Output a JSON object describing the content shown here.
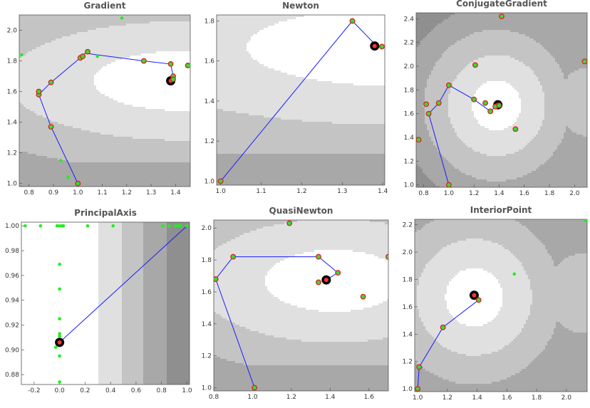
{
  "chart_data": [
    {
      "type": "contour",
      "title": "Gradient",
      "xlim": [
        0.76,
        1.46
      ],
      "ylim": [
        0.98,
        2.1
      ],
      "xticks": [
        "0.8",
        "0.9",
        "1.0",
        "1.1",
        "1.2",
        "1.3",
        "1.4"
      ],
      "yticks": [
        "1.0",
        "1.2",
        "1.4",
        "1.6",
        "1.8",
        "2.0"
      ],
      "minimum": [
        1.38,
        1.67
      ],
      "path": [
        [
          1.0,
          1.0
        ],
        [
          0.89,
          1.37
        ],
        [
          0.84,
          1.58
        ],
        [
          0.89,
          1.66
        ],
        [
          1.01,
          1.82
        ],
        [
          1.03,
          1.85
        ],
        [
          1.27,
          1.8
        ],
        [
          1.38,
          1.78
        ],
        [
          1.39,
          1.7
        ],
        [
          1.38,
          1.67
        ]
      ],
      "red_points": [
        [
          1.0,
          1.0
        ],
        [
          0.89,
          1.37
        ],
        [
          0.84,
          1.58
        ],
        [
          0.84,
          1.6
        ],
        [
          0.89,
          1.66
        ],
        [
          1.01,
          1.82
        ],
        [
          1.02,
          1.83
        ],
        [
          1.04,
          1.86
        ],
        [
          1.27,
          1.8
        ],
        [
          1.38,
          1.78
        ],
        [
          1.39,
          1.7
        ],
        [
          1.39,
          1.68
        ],
        [
          1.45,
          1.77
        ]
      ],
      "green_points": [
        [
          0.77,
          1.84
        ],
        [
          0.93,
          1.15
        ],
        [
          0.96,
          1.04
        ],
        [
          1.08,
          1.83
        ],
        [
          1.18,
          2.08
        ],
        [
          1.46,
          1.77
        ]
      ]
    },
    {
      "type": "contour",
      "title": "Newton",
      "xlim": [
        0.99,
        1.405
      ],
      "ylim": [
        0.98,
        1.83
      ],
      "xticks": [
        "1.0",
        "1.1",
        "1.2",
        "1.3",
        "1.4"
      ],
      "yticks": [
        "1.0",
        "1.2",
        "1.4",
        "1.6",
        "1.8"
      ],
      "minimum": [
        1.38,
        1.675
      ],
      "path": [
        [
          1.0,
          1.0
        ],
        [
          1.325,
          1.8
        ],
        [
          1.385,
          1.675
        ],
        [
          1.398,
          1.672
        ]
      ],
      "red_points": [
        [
          1.0,
          1.0
        ],
        [
          1.325,
          1.8
        ],
        [
          1.398,
          1.672
        ]
      ],
      "green_points": []
    },
    {
      "type": "contour",
      "title": "ConjugateGradient",
      "xlim": [
        0.74,
        2.1
      ],
      "ylim": [
        0.98,
        2.45
      ],
      "xticks": [
        "0.8",
        "1.0",
        "1.2",
        "1.4",
        "1.6",
        "1.8",
        "2.0"
      ],
      "yticks": [
        "1.0",
        "1.2",
        "1.4",
        "1.6",
        "1.8",
        "2.0",
        "2.2",
        "2.4"
      ],
      "minimum": [
        1.39,
        1.675
      ],
      "path": [
        [
          1.0,
          1.0
        ],
        [
          0.84,
          1.6
        ],
        [
          0.92,
          1.69
        ],
        [
          1.0,
          1.84
        ],
        [
          1.2,
          1.72
        ],
        [
          1.33,
          1.62
        ],
        [
          1.39,
          1.675
        ]
      ],
      "red_points": [
        [
          1.0,
          1.0
        ],
        [
          0.84,
          1.6
        ],
        [
          0.92,
          1.69
        ],
        [
          1.0,
          1.84
        ],
        [
          1.2,
          1.72
        ],
        [
          1.33,
          1.62
        ],
        [
          1.37,
          1.66
        ],
        [
          1.4,
          1.67
        ],
        [
          0.76,
          1.38
        ],
        [
          0.82,
          1.68
        ],
        [
          1.21,
          2.01
        ],
        [
          1.29,
          1.69
        ],
        [
          1.53,
          1.47
        ],
        [
          1.42,
          2.42
        ],
        [
          2.08,
          2.04
        ]
      ],
      "green_points": []
    },
    {
      "type": "contour",
      "title": "PrincipalAxis",
      "xlim": [
        -0.3,
        1.02
      ],
      "ylim": [
        0.872,
        1.003
      ],
      "xticks": [
        "-0.2",
        "0.0",
        "0.2",
        "0.4",
        "0.6",
        "0.8",
        "1.0"
      ],
      "yticks": [
        "0.88",
        "0.90",
        "0.92",
        "0.94",
        "0.96",
        "0.98",
        "1.00"
      ],
      "minimum": [
        0.0,
        0.906
      ],
      "path": [
        [
          0.0,
          0.906
        ],
        [
          1.0,
          1.0
        ]
      ],
      "red_points": [],
      "green_points": [
        [
          -0.27,
          1.0
        ],
        [
          -0.15,
          1.0
        ],
        [
          -0.02,
          1.0
        ],
        [
          0.0,
          1.0
        ],
        [
          0.02,
          1.0
        ],
        [
          0.03,
          1.0
        ],
        [
          0.22,
          1.0
        ],
        [
          0.42,
          1.0
        ],
        [
          0.81,
          1.0
        ],
        [
          0.86,
          1.0
        ],
        [
          0.91,
          1.0
        ],
        [
          0.93,
          1.0
        ],
        [
          0.95,
          1.0
        ],
        [
          1.0,
          1.0
        ],
        [
          0.0,
          0.969
        ],
        [
          0.0,
          0.949
        ],
        [
          0.0,
          0.925
        ],
        [
          0.0,
          0.913
        ],
        [
          0.0,
          0.911
        ],
        [
          -0.03,
          0.902
        ],
        [
          0.0,
          0.895
        ],
        [
          0.0,
          0.874
        ]
      ]
    },
    {
      "type": "contour",
      "title": "QuasiNewton",
      "xlim": [
        0.8,
        1.7
      ],
      "ylim": [
        0.98,
        2.05
      ],
      "xticks": [
        "0.8",
        "1.0",
        "1.2",
        "1.4",
        "1.6"
      ],
      "yticks": [
        "1.0",
        "1.2",
        "1.4",
        "1.6",
        "1.8",
        "2.0"
      ],
      "minimum": [
        1.38,
        1.675
      ],
      "path": [
        [
          1.01,
          1.0
        ],
        [
          0.81,
          1.68
        ],
        [
          0.9,
          1.82
        ],
        [
          1.34,
          1.82
        ],
        [
          1.44,
          1.72
        ],
        [
          1.38,
          1.675
        ]
      ],
      "red_points": [
        [
          1.01,
          1.0
        ],
        [
          0.81,
          1.68
        ],
        [
          0.9,
          1.82
        ],
        [
          1.34,
          1.82
        ],
        [
          1.44,
          1.72
        ],
        [
          1.34,
          1.66
        ],
        [
          1.19,
          2.03
        ],
        [
          1.57,
          1.57
        ],
        [
          1.7,
          1.82
        ]
      ],
      "green_points": []
    },
    {
      "type": "contour",
      "title": "InteriorPoint",
      "xlim": [
        0.98,
        2.14
      ],
      "ylim": [
        0.98,
        2.24
      ],
      "xticks": [
        "1.0",
        "1.2",
        "1.4",
        "1.6",
        "1.8",
        "2.0"
      ],
      "yticks": [
        "1.0",
        "1.2",
        "1.4",
        "1.6",
        "1.8",
        "2.0",
        "2.2"
      ],
      "minimum": [
        1.38,
        1.685
      ],
      "path": [
        [
          1.0,
          1.0
        ],
        [
          1.01,
          1.16
        ],
        [
          1.17,
          1.45
        ],
        [
          1.41,
          1.65
        ],
        [
          1.38,
          1.685
        ]
      ],
      "red_points": [
        [
          1.0,
          1.0
        ],
        [
          1.01,
          1.16
        ],
        [
          1.17,
          1.45
        ],
        [
          1.41,
          1.65
        ]
      ],
      "green_points": [
        [
          1.65,
          1.84
        ],
        [
          2.13,
          2.23
        ]
      ]
    }
  ]
}
